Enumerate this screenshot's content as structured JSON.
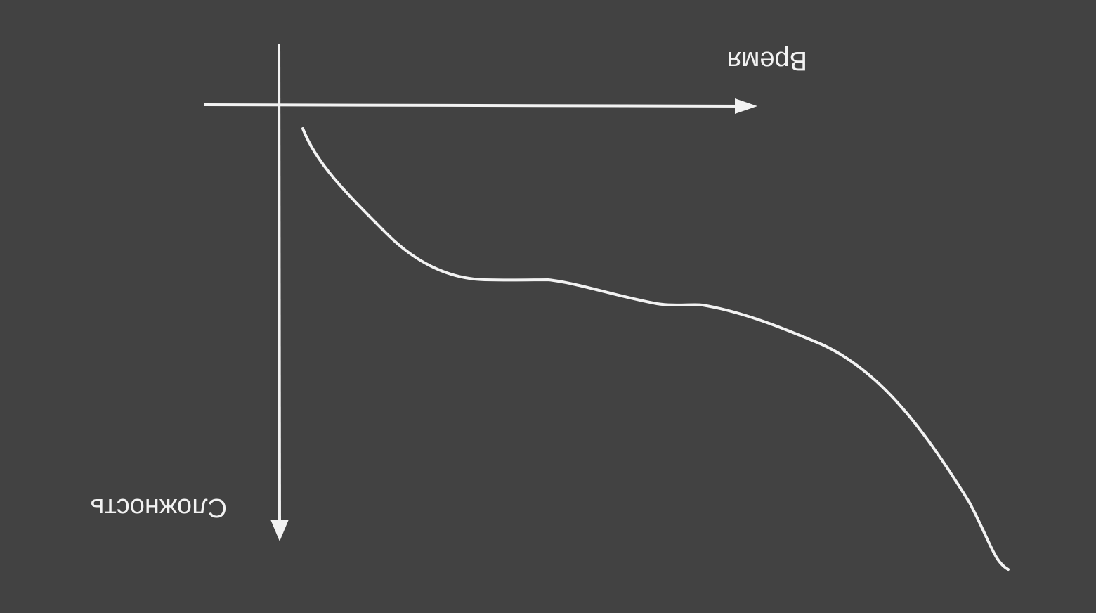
{
  "diagram": {
    "background_color": "#424242",
    "line_color": "#f2f2f2",
    "orientation": "rotated-180",
    "x_axis": {
      "label": "Время"
    },
    "y_axis": {
      "label": "Сложность"
    },
    "curve": {
      "shape": "decreasing-with-plateaus"
    }
  }
}
